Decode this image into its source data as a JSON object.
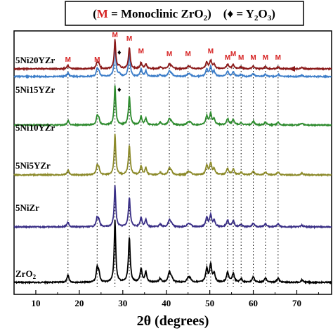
{
  "chart_data": {
    "type": "line",
    "xlabel": "2θ (degrees)",
    "xlim": [
      5,
      78
    ],
    "x_ticks": [
      10,
      20,
      30,
      40,
      50,
      60,
      70
    ],
    "legend": {
      "m_letter": "M",
      "m_text": " = Monoclinic ZrO",
      "m_sub": "2",
      "close_paren": ")",
      "diamond": "♦",
      "y_text": " = Y",
      "y_sub1": "2",
      "o_text": "O",
      "y_sub2": "3",
      "placement": "top-center"
    },
    "series": [
      {
        "name": "ZrO2",
        "label_main": "ZrO",
        "label_sub": "2",
        "color": "#000000"
      },
      {
        "name": "5NiZr",
        "label_main": "5NiZr",
        "label_sub": "",
        "color": "#3a2f86"
      },
      {
        "name": "5Ni5YZr",
        "label_main": "5Ni5YZr",
        "label_sub": "",
        "color": "#8c8a2a"
      },
      {
        "name": "5Ni10YZr",
        "label_main": "5Ni10YZr",
        "label_sub": "",
        "color": "#2e8b2e"
      },
      {
        "name": "5Ni15YZr",
        "label_main": "5Ni15YZr",
        "label_sub": "",
        "color": "#3d7ec9"
      },
      {
        "name": "5Ni20YZr",
        "label_main": "5Ni20YZr",
        "label_sub": "",
        "color": "#8b1a1a"
      }
    ],
    "monoclinic_peaks": [
      17.4,
      24.1,
      28.2,
      31.5,
      34.2,
      40.7,
      45.0,
      49.3,
      50.2,
      54.1,
      55.4,
      57.2,
      60.0,
      62.8,
      65.7
    ],
    "m_marker_positions": [
      17.4,
      24.1,
      28.2,
      31.5,
      34.2,
      40.7,
      45.0,
      50.2,
      54.1,
      55.4,
      57.2,
      60.0,
      62.8,
      65.7
    ],
    "y2o3_marker": {
      "x": 29.2,
      "series": [
        "5Ni15YZr",
        "5Ni20YZr"
      ]
    },
    "peak_profile": [
      {
        "x": 17.4,
        "h": 0.12,
        "w": 0.25
      },
      {
        "x": 24.1,
        "h": 0.22,
        "w": 0.25
      },
      {
        "x": 24.5,
        "h": 0.14,
        "w": 0.25
      },
      {
        "x": 28.2,
        "h": 1.0,
        "w": 0.22
      },
      {
        "x": 31.5,
        "h": 0.72,
        "w": 0.25
      },
      {
        "x": 34.2,
        "h": 0.22,
        "w": 0.25
      },
      {
        "x": 35.3,
        "h": 0.17,
        "w": 0.25
      },
      {
        "x": 38.6,
        "h": 0.06,
        "w": 0.3
      },
      {
        "x": 40.7,
        "h": 0.16,
        "w": 0.3
      },
      {
        "x": 41.2,
        "h": 0.07,
        "w": 0.3
      },
      {
        "x": 45.0,
        "h": 0.07,
        "w": 0.3
      },
      {
        "x": 45.5,
        "h": 0.06,
        "w": 0.3
      },
      {
        "x": 49.3,
        "h": 0.22,
        "w": 0.28
      },
      {
        "x": 50.2,
        "h": 0.28,
        "w": 0.28
      },
      {
        "x": 51.0,
        "h": 0.14,
        "w": 0.28
      },
      {
        "x": 54.1,
        "h": 0.16,
        "w": 0.3
      },
      {
        "x": 55.4,
        "h": 0.14,
        "w": 0.3
      },
      {
        "x": 57.2,
        "h": 0.06,
        "w": 0.3
      },
      {
        "x": 60.0,
        "h": 0.09,
        "w": 0.3
      },
      {
        "x": 62.8,
        "h": 0.07,
        "w": 0.3
      },
      {
        "x": 65.7,
        "h": 0.07,
        "w": 0.3
      },
      {
        "x": 71.2,
        "h": 0.04,
        "w": 0.3
      }
    ],
    "series_peak_scale": [
      1.0,
      0.83,
      0.83,
      0.8,
      0.78,
      0.75
    ]
  }
}
